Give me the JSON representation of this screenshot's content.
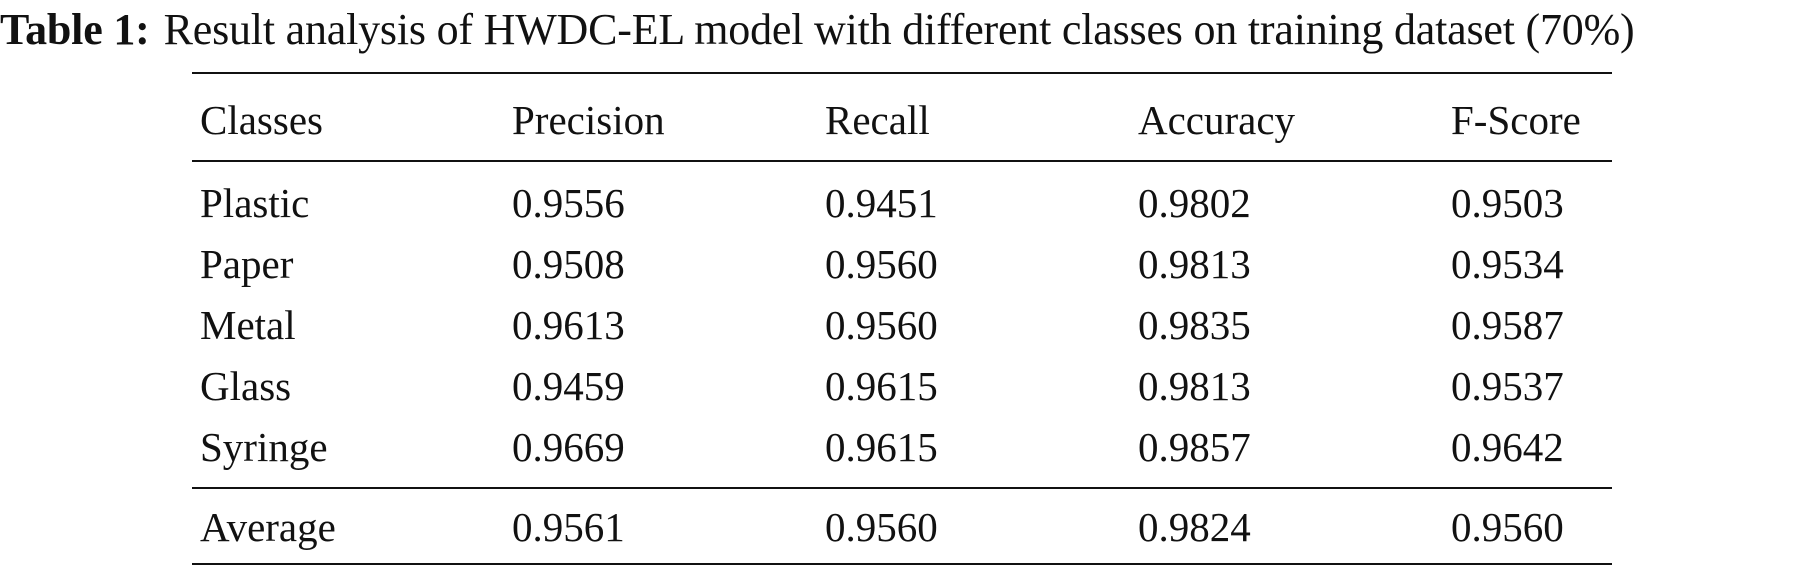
{
  "caption": {
    "label": "Table 1:",
    "text": "Result analysis of HWDC-EL model with different classes on training dataset (70%)"
  },
  "table": {
    "headers": [
      "Classes",
      "Precision",
      "Recall",
      "Accuracy",
      "F-Score"
    ],
    "rows": [
      [
        "Plastic",
        "0.9556",
        "0.9451",
        "0.9802",
        "0.9503"
      ],
      [
        "Paper",
        "0.9508",
        "0.9560",
        "0.9813",
        "0.9534"
      ],
      [
        "Metal",
        "0.9613",
        "0.9560",
        "0.9835",
        "0.9587"
      ],
      [
        "Glass",
        "0.9459",
        "0.9615",
        "0.9813",
        "0.9537"
      ],
      [
        "Syringe",
        "0.9669",
        "0.9615",
        "0.9857",
        "0.9642"
      ]
    ],
    "footer": [
      "Average",
      "0.9561",
      "0.9560",
      "0.9824",
      "0.9560"
    ]
  }
}
